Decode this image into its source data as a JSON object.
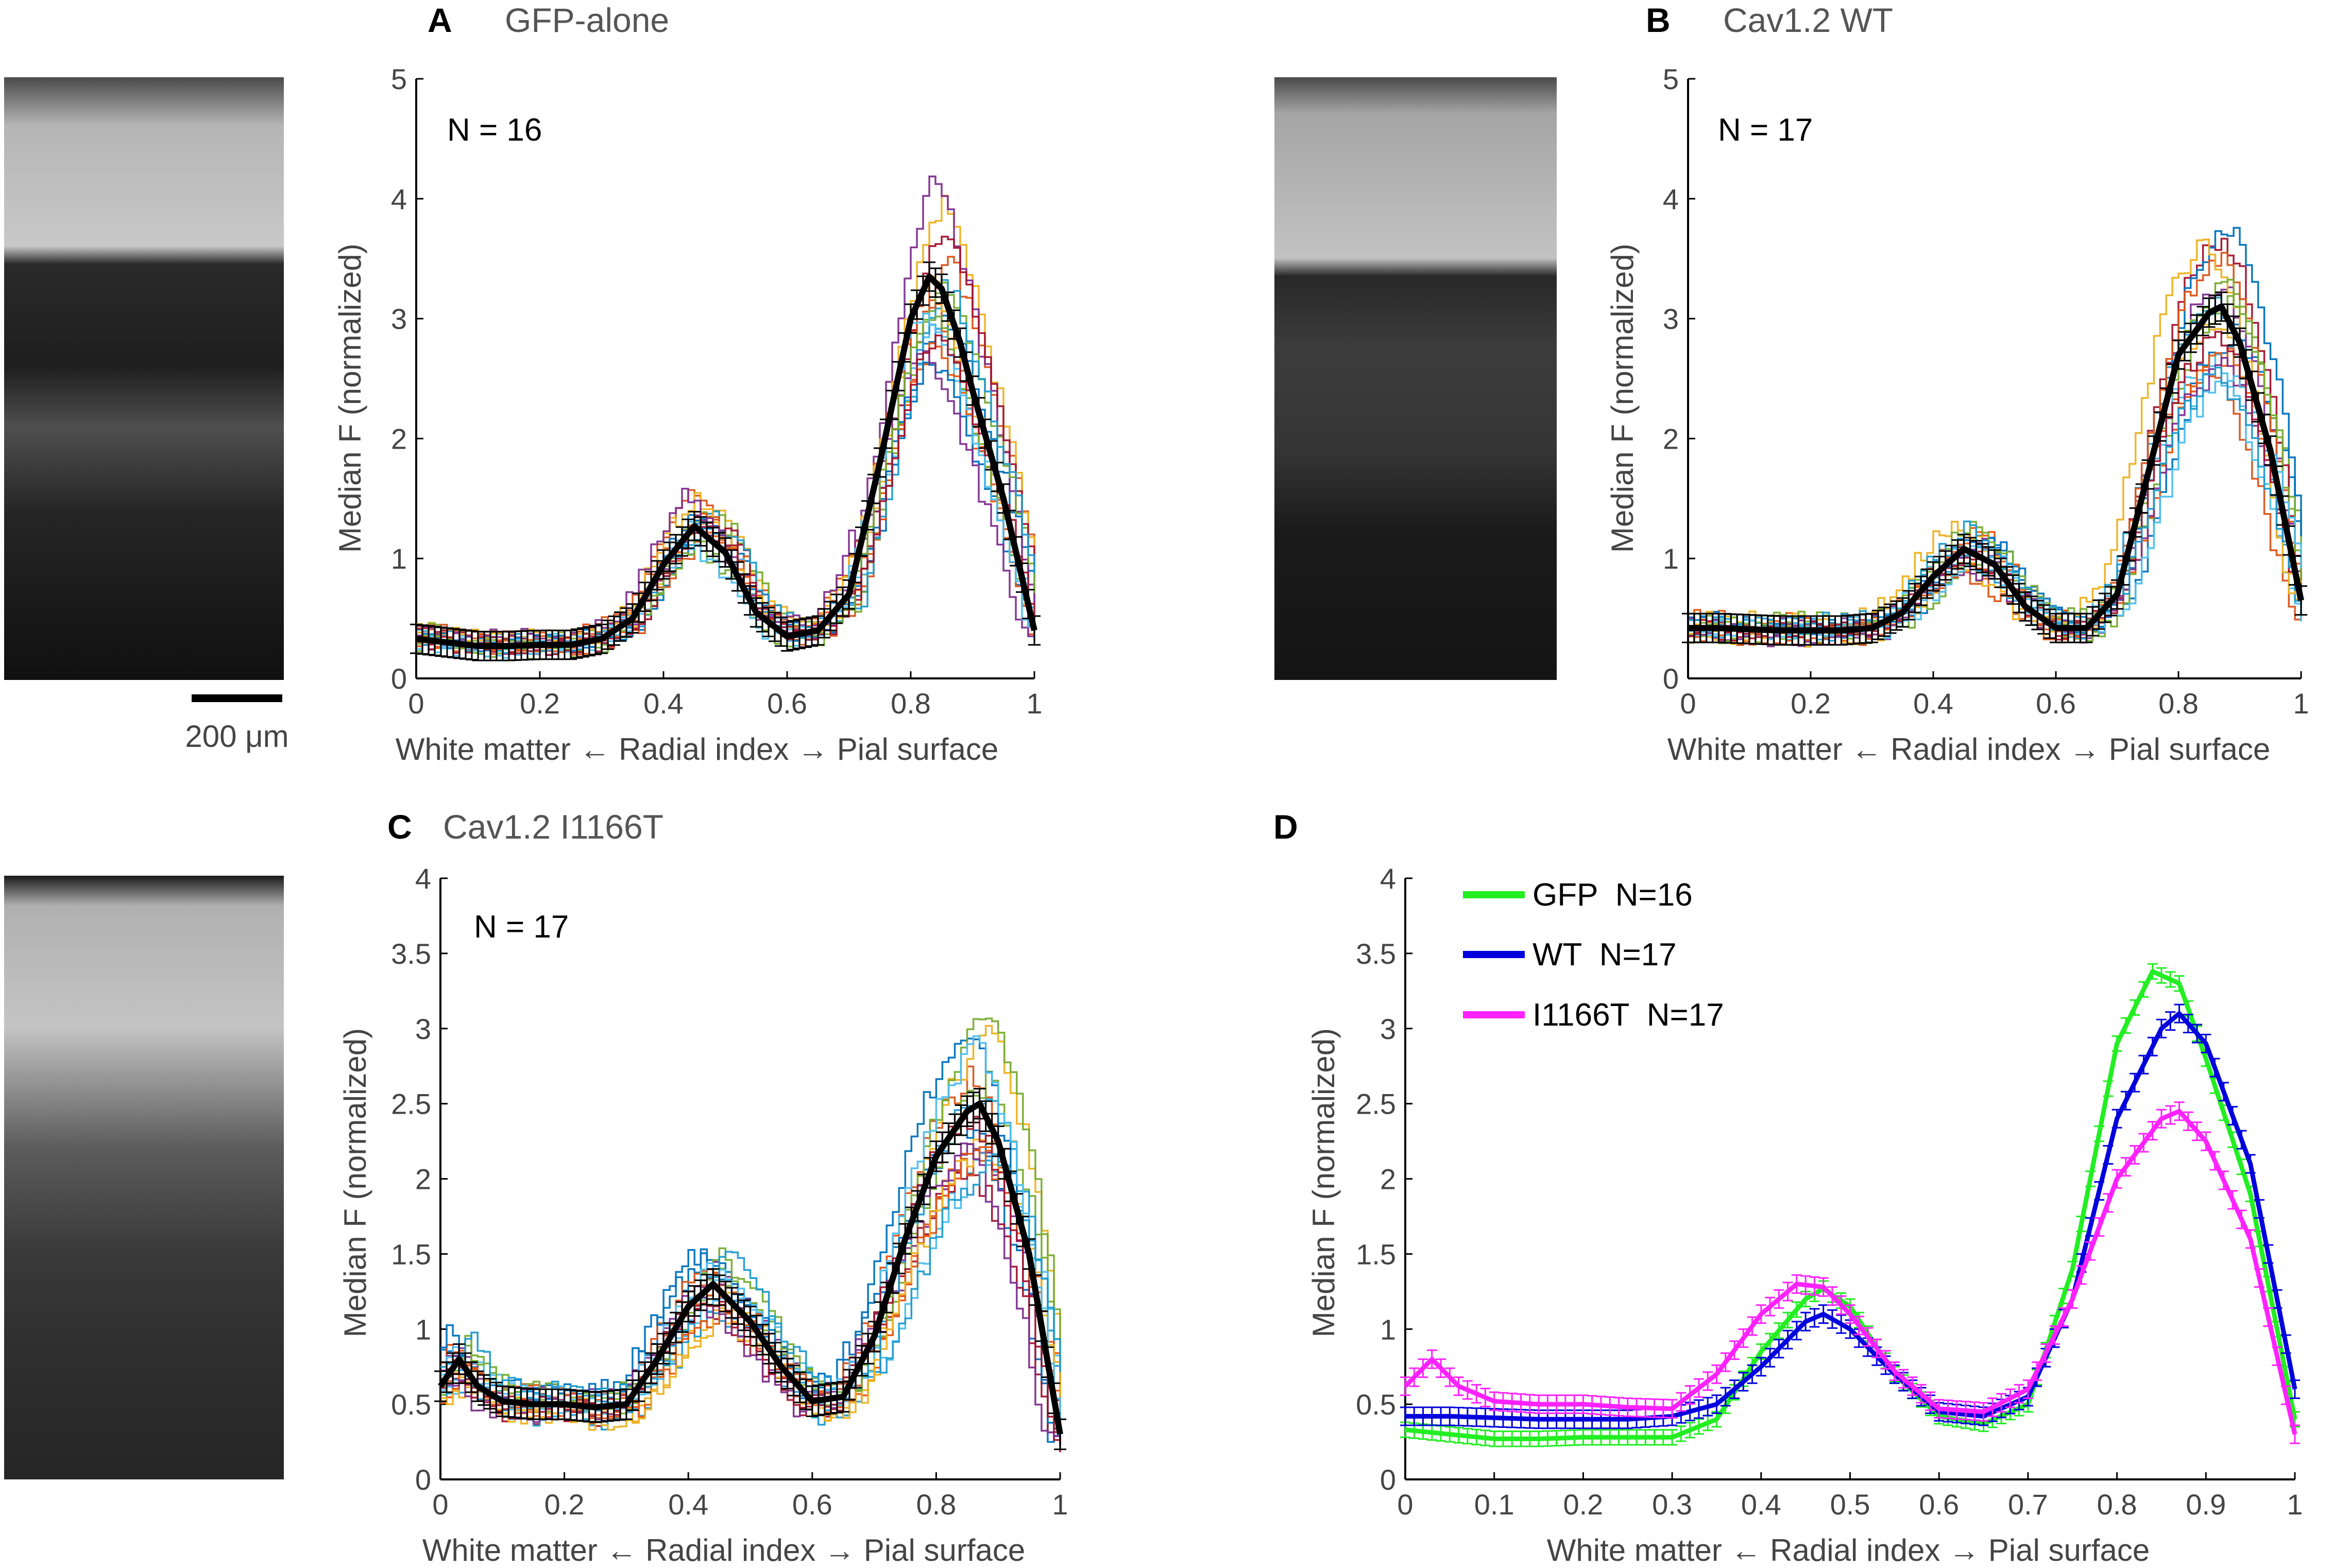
{
  "figure": {
    "panels": [
      {
        "letter": "A",
        "title": "GFP-alone",
        "n_label": "N = 16"
      },
      {
        "letter": "B",
        "title": "Cav1.2 WT",
        "n_label": "N = 17"
      },
      {
        "letter": "C",
        "title": "Cav1.2 I1166T",
        "n_label": "N = 17"
      },
      {
        "letter": "D",
        "title": "",
        "n_label": ""
      }
    ],
    "scale_bar_label": "200 μm",
    "xlabel": "White matter ← Radial index → Pial surface",
    "ylabel": "Median F (normalized)",
    "legend": [
      {
        "label": "GFP  N=16",
        "color": "#22ee22"
      },
      {
        "label": "WT  N=17",
        "color": "#0000dd"
      },
      {
        "label": "I1166T  N=17",
        "color": "#ff22ff"
      }
    ],
    "colors": {
      "mean": "#000000",
      "traces": [
        "#0072bd",
        "#d95319",
        "#edb120",
        "#7e2f8e",
        "#77ac30",
        "#4dbeee",
        "#a2142f",
        "#1f9bcf",
        "#e6550d"
      ]
    }
  },
  "chart_data": [
    {
      "panel": "A",
      "type": "line",
      "title": "GFP-alone",
      "xlabel": "White matter ← Radial index → Pial surface",
      "ylabel": "Median F (normalized)",
      "xlim": [
        0,
        1
      ],
      "ylim": [
        0,
        5
      ],
      "xticks": [
        "0",
        "0.2",
        "0.4",
        "0.6",
        "0.8",
        "1"
      ],
      "yticks": [
        "0",
        "1",
        "2",
        "3",
        "4",
        "5"
      ],
      "n_traces": 16,
      "mean": {
        "x": [
          0,
          0.05,
          0.1,
          0.15,
          0.2,
          0.25,
          0.3,
          0.35,
          0.4,
          0.45,
          0.5,
          0.55,
          0.6,
          0.65,
          0.7,
          0.75,
          0.8,
          0.83,
          0.85,
          0.88,
          0.9,
          0.95,
          1.0
        ],
        "y": [
          0.33,
          0.3,
          0.27,
          0.27,
          0.28,
          0.28,
          0.33,
          0.5,
          0.95,
          1.27,
          1.05,
          0.55,
          0.35,
          0.4,
          0.7,
          1.8,
          3.0,
          3.35,
          3.25,
          2.8,
          2.4,
          1.5,
          0.4
        ],
        "err": 0.12
      }
    },
    {
      "panel": "B",
      "type": "line",
      "title": "Cav1.2 WT",
      "xlabel": "White matter ← Radial index → Pial surface",
      "ylabel": "Median F (normalized)",
      "xlim": [
        0,
        1
      ],
      "ylim": [
        0,
        5
      ],
      "xticks": [
        "0",
        "0.2",
        "0.4",
        "0.6",
        "0.8",
        "1"
      ],
      "yticks": [
        "0",
        "1",
        "2",
        "3",
        "4",
        "5"
      ],
      "n_traces": 17,
      "mean": {
        "x": [
          0,
          0.05,
          0.1,
          0.15,
          0.2,
          0.25,
          0.3,
          0.35,
          0.4,
          0.45,
          0.5,
          0.55,
          0.6,
          0.65,
          0.7,
          0.75,
          0.8,
          0.85,
          0.87,
          0.9,
          0.95,
          1.0
        ],
        "y": [
          0.42,
          0.42,
          0.41,
          0.4,
          0.4,
          0.4,
          0.42,
          0.55,
          0.85,
          1.08,
          0.95,
          0.6,
          0.42,
          0.42,
          0.7,
          1.7,
          2.7,
          3.05,
          3.1,
          2.8,
          1.9,
          0.65
        ],
        "err": 0.12
      }
    },
    {
      "panel": "C",
      "type": "line",
      "title": "Cav1.2 I1166T",
      "xlabel": "White matter ← Radial index → Pial surface",
      "ylabel": "Median F (normalized)",
      "xlim": [
        0,
        1
      ],
      "ylim": [
        0,
        4
      ],
      "xticks": [
        "0",
        "0.2",
        "0.4",
        "0.6",
        "0.8",
        "1"
      ],
      "yticks": [
        "0",
        "0.5",
        "1",
        "1.5",
        "2",
        "2.5",
        "3",
        "3.5",
        "4"
      ],
      "n_traces": 17,
      "mean": {
        "x": [
          0,
          0.03,
          0.06,
          0.1,
          0.15,
          0.2,
          0.25,
          0.3,
          0.35,
          0.4,
          0.44,
          0.5,
          0.55,
          0.6,
          0.65,
          0.7,
          0.75,
          0.8,
          0.85,
          0.87,
          0.9,
          0.95,
          1.0
        ],
        "y": [
          0.62,
          0.8,
          0.62,
          0.52,
          0.5,
          0.5,
          0.48,
          0.5,
          0.8,
          1.15,
          1.3,
          1.05,
          0.75,
          0.52,
          0.55,
          0.95,
          1.6,
          2.15,
          2.45,
          2.5,
          2.25,
          1.5,
          0.3
        ],
        "err": 0.1
      }
    },
    {
      "panel": "D",
      "type": "line",
      "xlabel": "White matter ← Radial index → Pial surface",
      "ylabel": "Median F (normalized)",
      "xlim": [
        0,
        1
      ],
      "ylim": [
        0,
        4
      ],
      "xticks": [
        "0",
        "0.1",
        "0.2",
        "0.3",
        "0.4",
        "0.5",
        "0.6",
        "0.7",
        "0.8",
        "0.9",
        "1"
      ],
      "yticks": [
        "0",
        "0.5",
        "1",
        "1.5",
        "2",
        "2.5",
        "3",
        "3.5",
        "4"
      ],
      "legend_position": "top-left",
      "series": [
        {
          "name": "GFP  N=16",
          "x": [
            0,
            0.05,
            0.1,
            0.15,
            0.2,
            0.25,
            0.3,
            0.35,
            0.4,
            0.45,
            0.47,
            0.5,
            0.55,
            0.6,
            0.65,
            0.7,
            0.75,
            0.8,
            0.84,
            0.87,
            0.9,
            0.95,
            1.0
          ],
          "y": [
            0.33,
            0.3,
            0.27,
            0.27,
            0.28,
            0.28,
            0.28,
            0.4,
            0.85,
            1.2,
            1.27,
            1.15,
            0.7,
            0.42,
            0.37,
            0.5,
            1.4,
            2.9,
            3.38,
            3.3,
            2.8,
            1.9,
            0.4
          ],
          "err": 0.05
        },
        {
          "name": "WT  N=17",
          "x": [
            0,
            0.05,
            0.1,
            0.15,
            0.2,
            0.25,
            0.3,
            0.35,
            0.4,
            0.45,
            0.47,
            0.5,
            0.55,
            0.6,
            0.65,
            0.7,
            0.75,
            0.8,
            0.85,
            0.87,
            0.9,
            0.95,
            1.0
          ],
          "y": [
            0.42,
            0.42,
            0.41,
            0.4,
            0.4,
            0.4,
            0.42,
            0.5,
            0.75,
            1.05,
            1.1,
            1.0,
            0.7,
            0.45,
            0.42,
            0.55,
            1.2,
            2.4,
            3.0,
            3.1,
            2.9,
            2.1,
            0.6
          ],
          "err": 0.06
        },
        {
          "name": "I1166T  N=17",
          "x": [
            0,
            0.03,
            0.06,
            0.1,
            0.15,
            0.2,
            0.25,
            0.3,
            0.35,
            0.4,
            0.44,
            0.47,
            0.5,
            0.55,
            0.6,
            0.65,
            0.7,
            0.75,
            0.8,
            0.85,
            0.87,
            0.9,
            0.95,
            1.0
          ],
          "y": [
            0.62,
            0.8,
            0.62,
            0.52,
            0.5,
            0.5,
            0.48,
            0.47,
            0.7,
            1.1,
            1.3,
            1.28,
            1.1,
            0.72,
            0.47,
            0.45,
            0.6,
            1.2,
            2.0,
            2.4,
            2.45,
            2.25,
            1.6,
            0.3
          ],
          "err": 0.06
        }
      ]
    }
  ]
}
